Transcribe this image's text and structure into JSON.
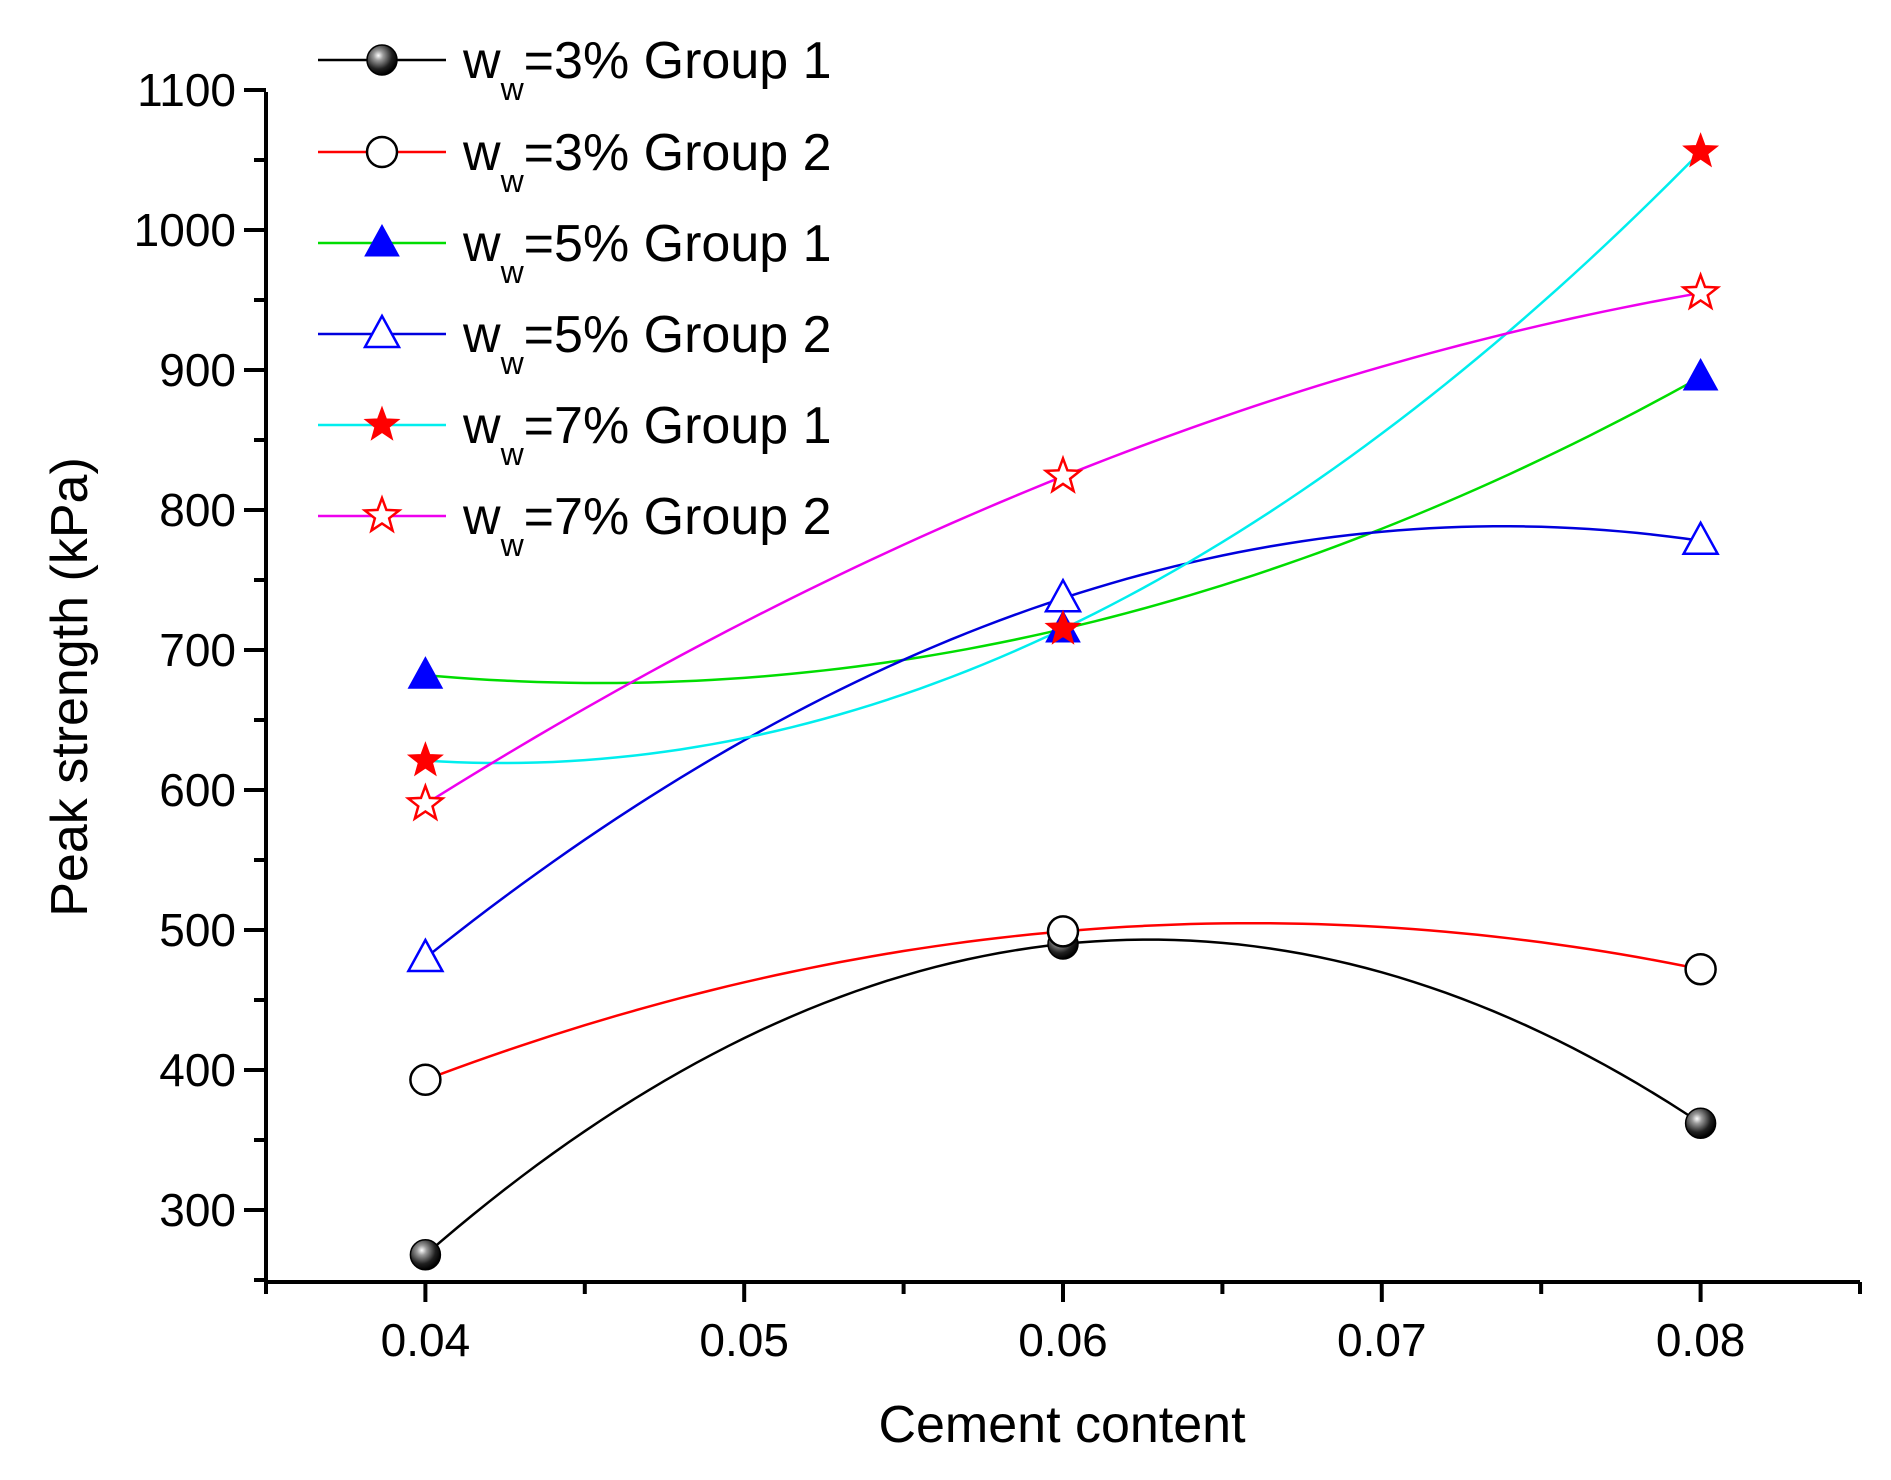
{
  "chart_data": {
    "type": "line",
    "xlabel": "Cement content",
    "ylabel": "Peak strength (kPa)",
    "xlim": [
      0.035,
      0.085
    ],
    "ylim": [
      250,
      1100
    ],
    "x_ticks": [
      0.04,
      0.05,
      0.06,
      0.07,
      0.08
    ],
    "x_tick_labels": [
      "0.04",
      "0.05",
      "0.06",
      "0.07",
      "0.08"
    ],
    "y_ticks": [
      300,
      400,
      500,
      600,
      700,
      800,
      900,
      1000,
      1100
    ],
    "y_tick_labels": [
      "300",
      "400",
      "500",
      "600",
      "700",
      "800",
      "900",
      "1000",
      "1100"
    ],
    "x": [
      0.04,
      0.06,
      0.08
    ],
    "grid": false,
    "legend_position": "top-left",
    "series": [
      {
        "name": "=3% Group 1",
        "legend_prefix": "w",
        "legend_sub": "w",
        "values": [
          268,
          490,
          362
        ],
        "line_color": "#000000",
        "marker": "sphere",
        "marker_color": "#000000"
      },
      {
        "name": "=3% Group 2",
        "legend_prefix": "w",
        "legend_sub": "w",
        "values": [
          393,
          499,
          472
        ],
        "line_color": "#ff0000",
        "marker": "open-circle",
        "marker_color": "#000000"
      },
      {
        "name": "=5% Group 1",
        "legend_prefix": "w",
        "legend_sub": "w",
        "values": [
          682,
          715,
          895
        ],
        "line_color": "#00dd00",
        "marker": "filled-triangle",
        "marker_color": "#0000ff"
      },
      {
        "name": "=5% Group 2",
        "legend_prefix": "w",
        "legend_sub": "w",
        "values": [
          480,
          737,
          778
        ],
        "line_color": "#0000dd",
        "marker": "open-triangle",
        "marker_color": "#0000ff"
      },
      {
        "name": "=7% Group 1",
        "legend_prefix": "w",
        "legend_sub": "w",
        "values": [
          621,
          715,
          1056
        ],
        "line_color": "#00eeee",
        "marker": "filled-star",
        "marker_color": "#ff0000"
      },
      {
        "name": "=7% Group 2",
        "legend_prefix": "w",
        "legend_sub": "w",
        "values": [
          590,
          824,
          955
        ],
        "line_color": "#ee00ee",
        "marker": "open-star",
        "marker_color": "#ff0000"
      }
    ]
  }
}
